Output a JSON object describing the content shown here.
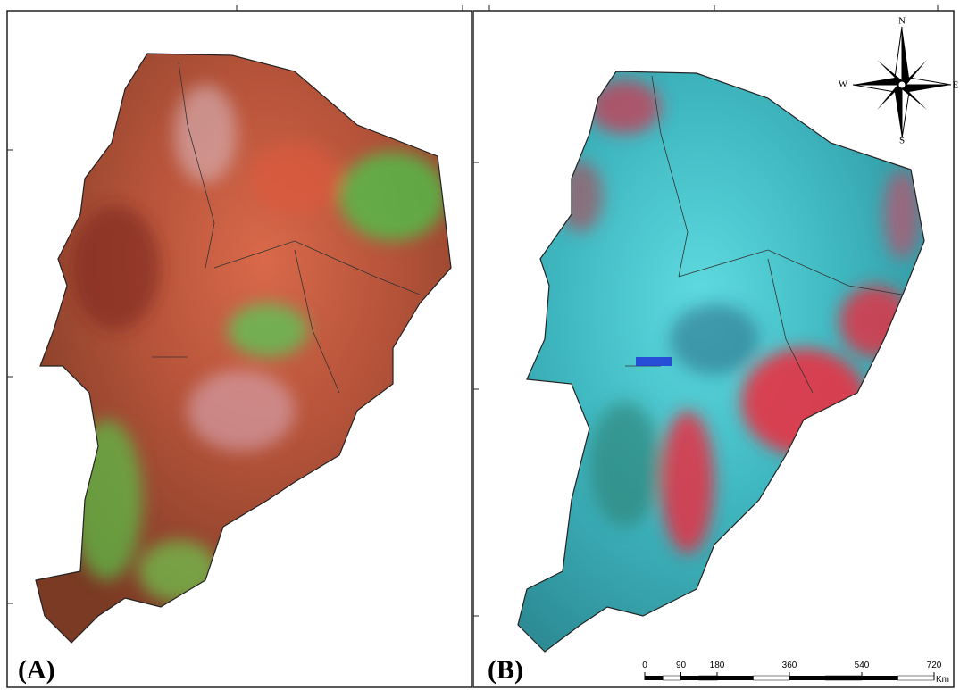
{
  "panels": [
    {
      "label": "(A)"
    },
    {
      "label": "(B)"
    }
  ],
  "compass": {
    "n": "N",
    "s": "S",
    "e": "E",
    "w": "W"
  },
  "scale_bar": {
    "ticks": [
      0,
      90,
      180,
      360,
      540,
      720
    ],
    "unit": "Km"
  }
}
